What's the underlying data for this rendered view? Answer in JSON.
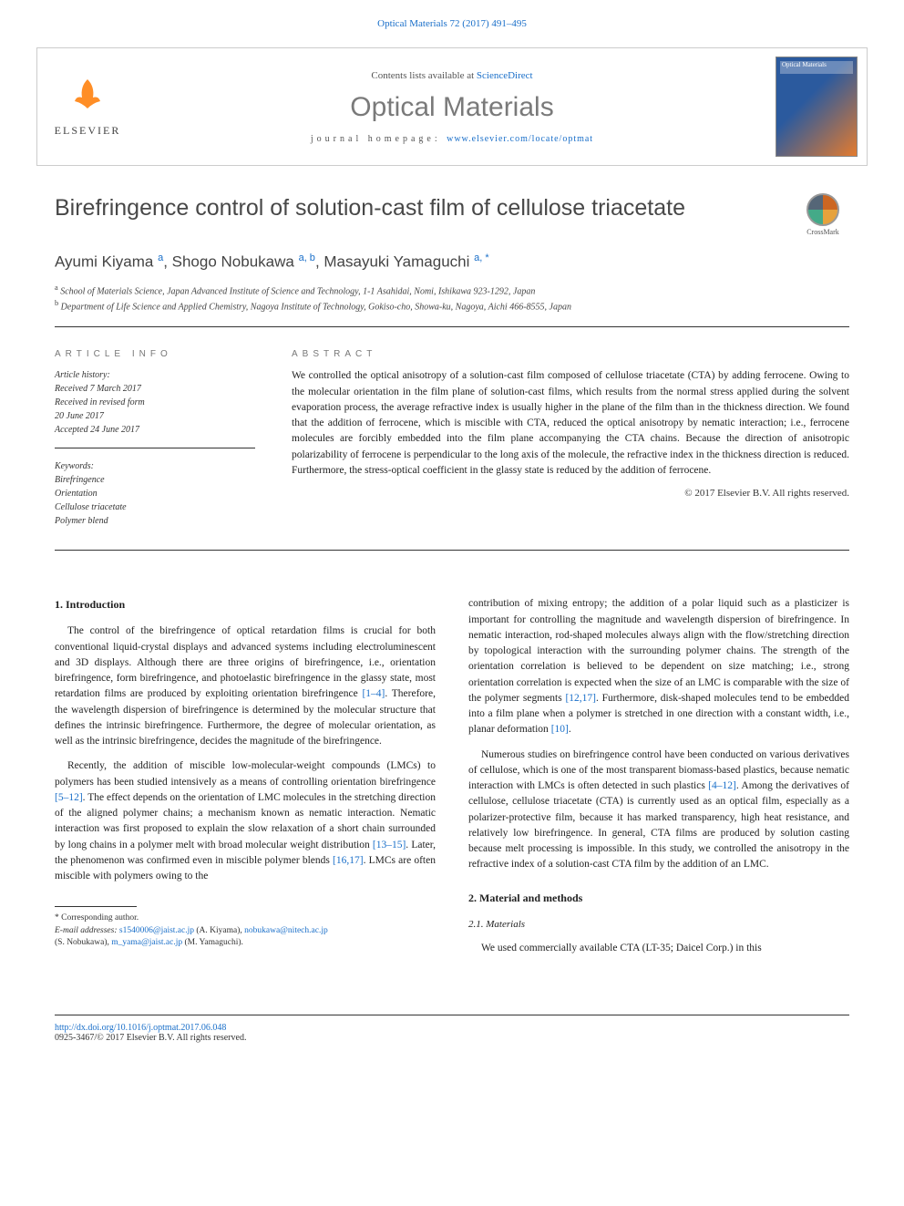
{
  "header": {
    "citation": "Optical Materials 72 (2017) 491–495"
  },
  "masthead": {
    "publisher": "ELSEVIER",
    "contents_prefix": "Contents lists available at ",
    "contents_link": "ScienceDirect",
    "journal": "Optical Materials",
    "homepage_label": "journal homepage: ",
    "homepage_url": "www.elsevier.com/locate/optmat",
    "cover_text": "Optical Materials"
  },
  "title": "Birefringence control of solution-cast film of cellulose triacetate",
  "crossmark": "CrossMark",
  "authors_html": "Ayumi Kiyama <sup>a</sup>, Shogo Nobukawa <sup>a, b</sup>, Masayuki Yamaguchi <sup>a, *</sup>",
  "affiliations": {
    "a": "a School of Materials Science, Japan Advanced Institute of Science and Technology, 1-1 Asahidai, Nomi, Ishikawa 923-1292, Japan",
    "b": "b Department of Life Science and Applied Chemistry, Nagoya Institute of Technology, Gokiso-cho, Showa-ku, Nagoya, Aichi 466-8555, Japan"
  },
  "article_info": {
    "label": "ARTICLE INFO",
    "history_label": "Article history:",
    "history": [
      "Received 7 March 2017",
      "Received in revised form",
      "20 June 2017",
      "Accepted 24 June 2017"
    ],
    "keywords_label": "Keywords:",
    "keywords": [
      "Birefringence",
      "Orientation",
      "Cellulose triacetate",
      "Polymer blend"
    ]
  },
  "abstract": {
    "label": "ABSTRACT",
    "text": "We controlled the optical anisotropy of a solution-cast film composed of cellulose triacetate (CTA) by adding ferrocene. Owing to the molecular orientation in the film plane of solution-cast films, which results from the normal stress applied during the solvent evaporation process, the average refractive index is usually higher in the plane of the film than in the thickness direction. We found that the addition of ferrocene, which is miscible with CTA, reduced the optical anisotropy by nematic interaction; i.e., ferrocene molecules are forcibly embedded into the film plane accompanying the CTA chains. Because the direction of anisotropic polarizability of ferrocene is perpendicular to the long axis of the molecule, the refractive index in the thickness direction is reduced. Furthermore, the stress-optical coefficient in the glassy state is reduced by the addition of ferrocene.",
    "copyright": "© 2017 Elsevier B.V. All rights reserved."
  },
  "body": {
    "intro_heading": "1. Introduction",
    "intro_p1a": "The control of the birefringence of optical retardation films is crucial for both conventional liquid-crystal displays and advanced systems including electroluminescent and 3D displays. Although there are three origins of birefringence, i.e., orientation birefringence, form birefringence, and photoelastic birefringence in the glassy state, most retardation films are produced by exploiting orientation birefringence ",
    "ref1": "[1–4]",
    "intro_p1b": ". Therefore, the wavelength dispersion of birefringence is determined by the molecular structure that defines the intrinsic birefringence. Furthermore, the degree of molecular orientation, as well as the intrinsic birefringence, decides the magnitude of the birefringence.",
    "intro_p2a": "Recently, the addition of miscible low-molecular-weight compounds (LMCs) to polymers has been studied intensively as a means of controlling orientation birefringence ",
    "ref2": "[5–12]",
    "intro_p2b": ". The effect depends on the orientation of LMC molecules in the stretching direction of the aligned polymer chains; a mechanism known as nematic interaction. Nematic interaction was first proposed to explain the slow relaxation of a short chain surrounded by long chains in a polymer melt with broad molecular weight distribution ",
    "ref3": "[13–15]",
    "intro_p2c": ". Later, the phenomenon was confirmed even in miscible polymer blends ",
    "ref4": "[16,17]",
    "intro_p2d": ". LMCs are often miscible with polymers owing to the",
    "col2_p1a": "contribution of mixing entropy; the addition of a polar liquid such as a plasticizer is important for controlling the magnitude and wavelength dispersion of birefringence. In nematic interaction, rod-shaped molecules always align with the flow/stretching direction by topological interaction with the surrounding polymer chains. The strength of the orientation correlation is believed to be dependent on size matching; i.e., strong orientation correlation is expected when the size of an LMC is comparable with the size of the polymer segments ",
    "ref5": "[12,17]",
    "col2_p1b": ". Furthermore, disk-shaped molecules tend to be embedded into a film plane when a polymer is stretched in one direction with a constant width, i.e., planar deformation ",
    "ref6": "[10]",
    "col2_p1c": ".",
    "col2_p2a": "Numerous studies on birefringence control have been conducted on various derivatives of cellulose, which is one of the most transparent biomass-based plastics, because nematic interaction with LMCs is often detected in such plastics ",
    "ref7": "[4–12]",
    "col2_p2b": ". Among the derivatives of cellulose, cellulose triacetate (CTA) is currently used as an optical film, especially as a polarizer-protective film, because it has marked transparency, high heat resistance, and relatively low birefringence. In general, CTA films are produced by solution casting because melt processing is impossible. In this study, we controlled the anisotropy in the refractive index of a solution-cast CTA film by the addition of an LMC.",
    "methods_heading": "2. Material and methods",
    "materials_sub": "2.1. Materials",
    "methods_p1": "We used commercially available CTA (LT-35; Daicel Corp.) in this"
  },
  "footnotes": {
    "corresp": "* Corresponding author.",
    "email_label": "E-mail addresses:",
    "emails": [
      {
        "addr": "s1540006@jaist.ac.jp",
        "who": "(A. Kiyama),"
      },
      {
        "addr": "nobukawa@nitech.ac.jp",
        "who": ""
      },
      {
        "addr_who": "(S. Nobukawa),"
      },
      {
        "addr": "m_yama@jaist.ac.jp",
        "who": "(M. Yamaguchi)."
      }
    ]
  },
  "footer": {
    "doi": "http://dx.doi.org/10.1016/j.optmat.2017.06.048",
    "issn_line": "0925-3467/© 2017 Elsevier B.V. All rights reserved."
  },
  "colors": {
    "link": "#1a6fc9",
    "orange": "#ff7a00",
    "gray": "#7a7a7a"
  }
}
